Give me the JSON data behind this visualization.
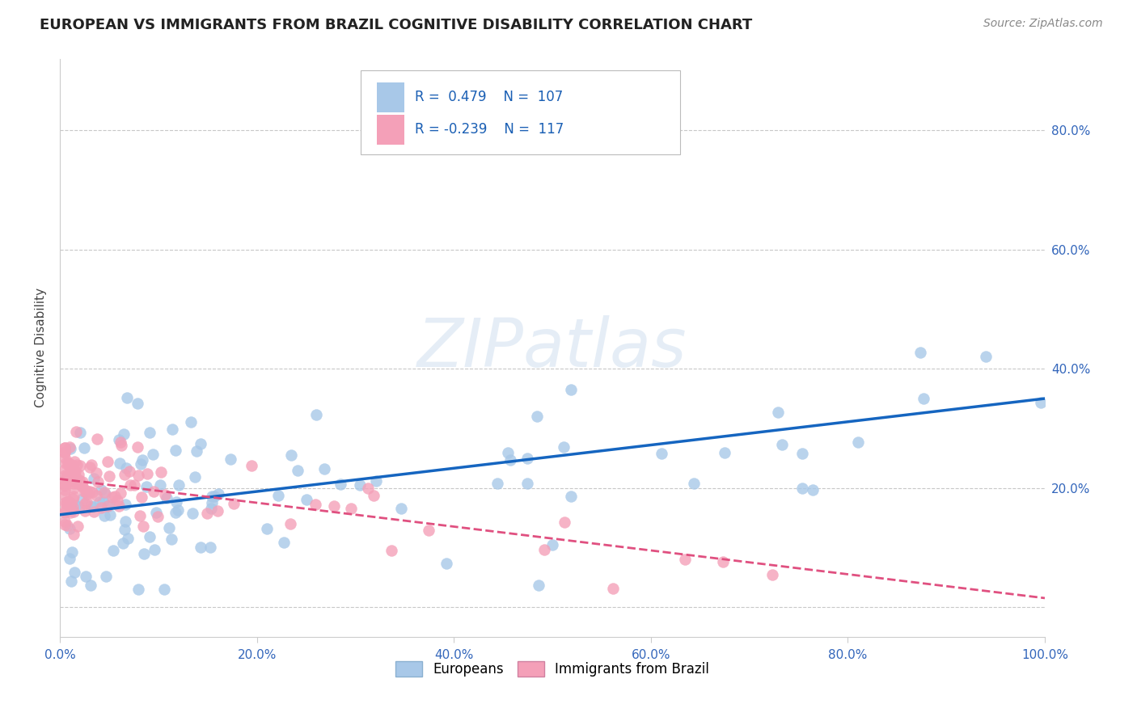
{
  "title": "EUROPEAN VS IMMIGRANTS FROM BRAZIL COGNITIVE DISABILITY CORRELATION CHART",
  "source": "Source: ZipAtlas.com",
  "ylabel": "Cognitive Disability",
  "xlim": [
    0.0,
    1.0
  ],
  "ylim": [
    -0.05,
    0.92
  ],
  "xtick_labels": [
    "0.0%",
    "20.0%",
    "40.0%",
    "60.0%",
    "80.0%",
    "100.0%"
  ],
  "r_european": 0.479,
  "n_european": 107,
  "r_brazil": -0.239,
  "n_brazil": 117,
  "color_european": "#a8c8e8",
  "color_brazil": "#f4a0b8",
  "color_european_line": "#1565C0",
  "color_brazil_line": "#e05080",
  "legend_label_european": "Europeans",
  "legend_label_brazil": "Immigrants from Brazil",
  "background_color": "#ffffff",
  "grid_color": "#c8c8c8",
  "eu_slope": 0.195,
  "eu_intercept": 0.155,
  "br_slope": -0.2,
  "br_intercept": 0.215
}
